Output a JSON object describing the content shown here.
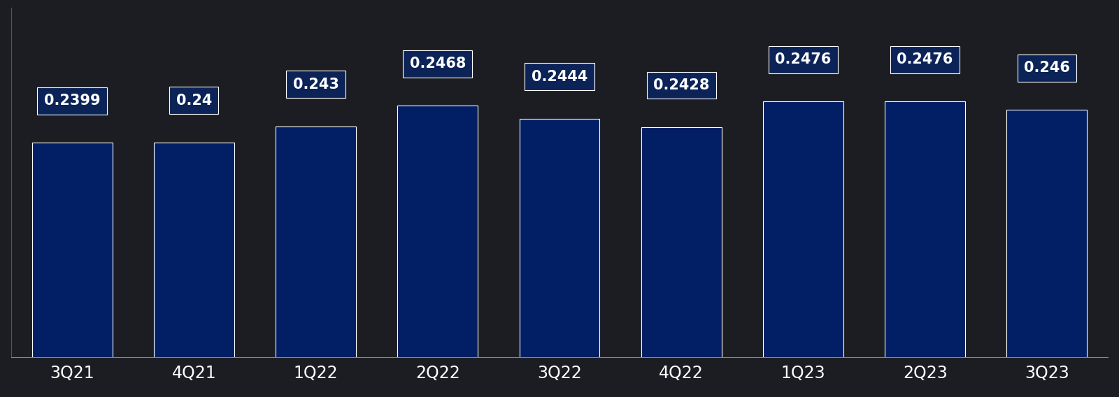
{
  "chart_data": {
    "type": "bar",
    "categories": [
      "3Q21",
      "4Q21",
      "1Q22",
      "2Q22",
      "3Q22",
      "4Q22",
      "1Q23",
      "2Q23",
      "3Q23"
    ],
    "values": [
      0.2399,
      0.24,
      0.243,
      0.2468,
      0.2444,
      0.2428,
      0.2476,
      0.2476,
      0.246
    ],
    "color": "#021e64",
    "ylim": [
      0.2,
      0.265
    ],
    "yticks": [],
    "data_labels": true,
    "tick_labels": "x",
    "grid": false
  }
}
